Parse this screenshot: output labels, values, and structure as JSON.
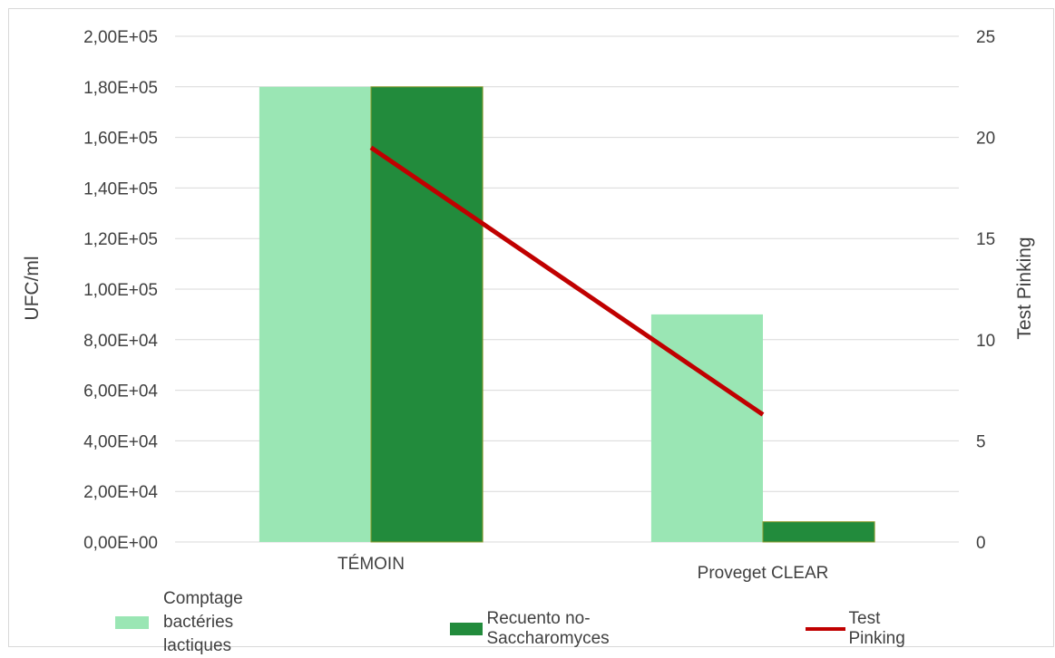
{
  "chart_data": {
    "type": "bar",
    "categories": [
      "TÉMOIN",
      "Proveget CLEAR"
    ],
    "series": [
      {
        "name": "Comptage bactéries lactiques",
        "values": [
          180000,
          90000
        ],
        "color": "#9ae6b4",
        "axis": "left",
        "kind": "bar"
      },
      {
        "name": "Recuento no-Saccharomyces",
        "values": [
          180000,
          8000
        ],
        "color": "#228b3c",
        "axis": "left",
        "kind": "bar"
      },
      {
        "name": "Test Pinking",
        "values": [
          19.5,
          6.3
        ],
        "color": "#c00000",
        "axis": "right",
        "kind": "line"
      }
    ],
    "ylabel": "UFC/ml",
    "y2label": "Test Pinking",
    "ylim": [
      0,
      200000
    ],
    "y2lim": [
      0,
      25
    ],
    "yticks": [
      "0,00E+00",
      "2,00E+04",
      "4,00E+04",
      "6,00E+04",
      "8,00E+04",
      "1,00E+05",
      "1,20E+05",
      "1,40E+05",
      "1,60E+05",
      "1,80E+05",
      "2,00E+05"
    ],
    "y2ticks": [
      "0",
      "5",
      "10",
      "15",
      "20",
      "25"
    ],
    "grid": true,
    "legend_position": "bottom"
  },
  "legend": {
    "item0_line1": "Comptage bactéries",
    "item0_line2": "lactiques",
    "item1": "Recuento no-Saccharomyces",
    "item2": "Test Pinking"
  }
}
